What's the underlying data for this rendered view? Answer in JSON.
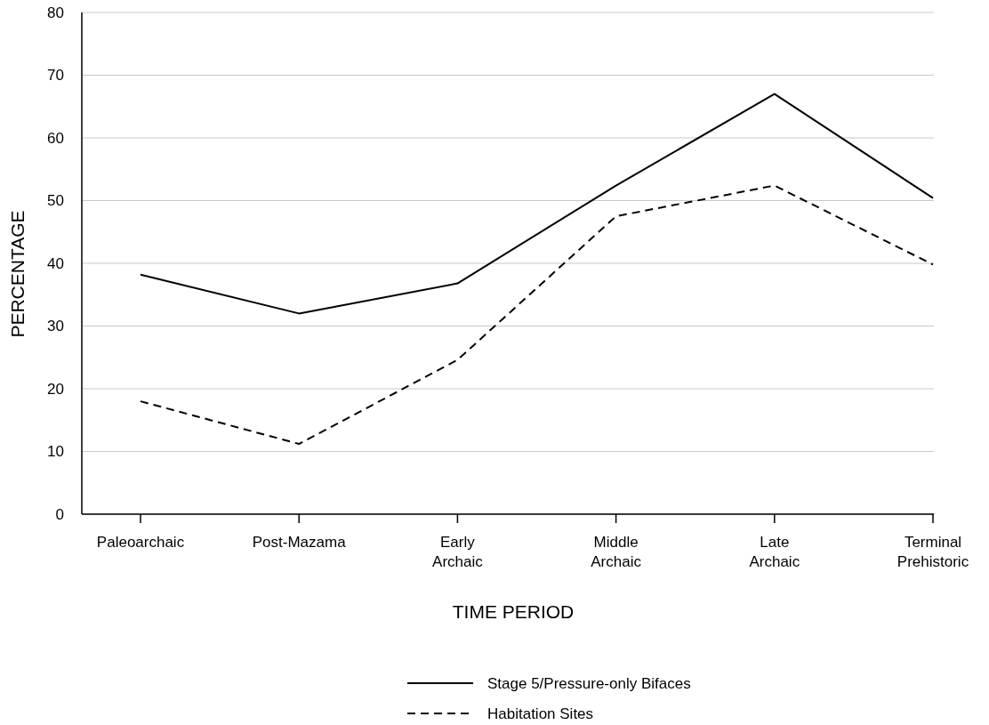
{
  "chart_data": {
    "type": "line",
    "xlabel": "TIME PERIOD",
    "ylabel": "PERCENTAGE",
    "categories": [
      "Paleoarchaic",
      "Post-Mazama",
      "Early Archaic",
      "Middle Archaic",
      "Late Archaic",
      "Terminal Prehistoric"
    ],
    "series": [
      {
        "name": "Stage 5/Pressure-only Bifaces",
        "color": "#000000",
        "line_style": "solid",
        "values": [
          38.2,
          32,
          36.8,
          52.4,
          67,
          50.4
        ]
      },
      {
        "name": "Habitation Sites",
        "color": "#000000",
        "line_style": "dashed",
        "values": [
          18,
          11.2,
          24.6,
          47.5,
          52.4,
          39.8
        ]
      }
    ],
    "ylim": [
      0,
      80
    ],
    "yticks": [
      0,
      10,
      20,
      30,
      40,
      50,
      60,
      70,
      80
    ],
    "grid": "y",
    "legend": "bottom",
    "marker": "none"
  }
}
